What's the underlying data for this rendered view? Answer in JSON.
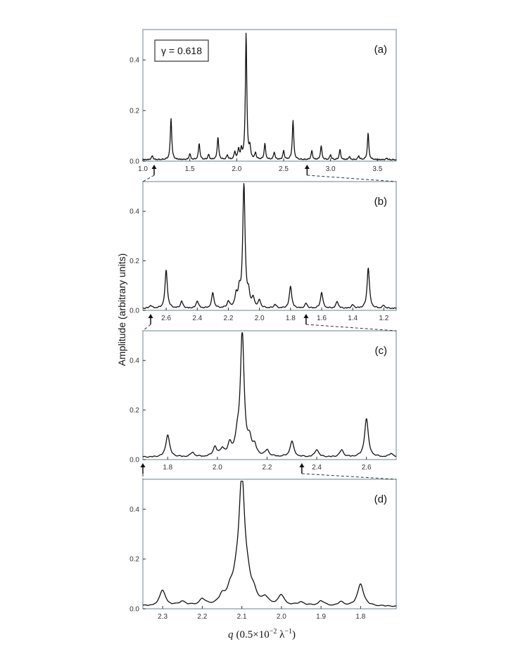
{
  "figure": {
    "y_axis_label": "Amplitude (arbitrary units)",
    "x_axis_label_var": "q",
    "x_axis_label_units": "(0.5×10",
    "x_axis_label_exp": "−2",
    "x_axis_label_tail": " λ",
    "x_axis_label_exp2": "−1",
    "x_axis_label_close": ")",
    "legend": "γ = 0.618"
  },
  "chart_data": [
    {
      "panel": "(a)",
      "type": "line",
      "x_range": [
        1.0,
        3.7
      ],
      "x_reversed": false,
      "ylim": [
        0,
        0.52
      ],
      "yticks": [
        0.0,
        0.2,
        0.4
      ],
      "xticks": [
        1.0,
        1.5,
        2.0,
        2.5,
        3.0,
        3.5
      ],
      "xtick_labels": [
        "1.0",
        "1.5",
        "2.0",
        "2.5",
        "3.0",
        "3.5"
      ],
      "baseline": 0.004,
      "peaks": [
        {
          "x": 1.1,
          "y": 0.016
        },
        {
          "x": 1.3,
          "y": 0.165
        },
        {
          "x": 1.5,
          "y": 0.024
        },
        {
          "x": 1.6,
          "y": 0.065
        },
        {
          "x": 1.7,
          "y": 0.02
        },
        {
          "x": 1.8,
          "y": 0.09
        },
        {
          "x": 1.9,
          "y": 0.018
        },
        {
          "x": 1.98,
          "y": 0.03
        },
        {
          "x": 2.02,
          "y": 0.04
        },
        {
          "x": 2.05,
          "y": 0.035
        },
        {
          "x": 2.1,
          "y": 0.5
        },
        {
          "x": 2.14,
          "y": 0.045
        },
        {
          "x": 2.2,
          "y": 0.025
        },
        {
          "x": 2.3,
          "y": 0.063
        },
        {
          "x": 2.4,
          "y": 0.03
        },
        {
          "x": 2.5,
          "y": 0.035
        },
        {
          "x": 2.6,
          "y": 0.155
        },
        {
          "x": 2.8,
          "y": 0.035
        },
        {
          "x": 2.9,
          "y": 0.055
        },
        {
          "x": 3.0,
          "y": 0.02
        },
        {
          "x": 3.1,
          "y": 0.04
        },
        {
          "x": 3.2,
          "y": 0.012
        },
        {
          "x": 3.3,
          "y": 0.015
        },
        {
          "x": 3.4,
          "y": 0.105
        },
        {
          "x": 3.6,
          "y": 0.006
        }
      ],
      "arrows_x": [
        1.12,
        2.75
      ]
    },
    {
      "panel": "(b)",
      "type": "line",
      "x_range": [
        2.75,
        1.12
      ],
      "x_reversed": true,
      "ylim": [
        0,
        0.52
      ],
      "yticks": [
        0.0,
        0.2,
        0.4
      ],
      "xticks": [
        2.6,
        2.4,
        2.2,
        2.0,
        1.8,
        1.6,
        1.4,
        1.2
      ],
      "xtick_labels": [
        "2.6",
        "2.4",
        "2.2",
        "2.0",
        "1.8",
        "1.6",
        "1.4",
        "1.2"
      ],
      "baseline": 0.006,
      "peaks": [
        {
          "x": 2.7,
          "y": 0.012
        },
        {
          "x": 2.6,
          "y": 0.155
        },
        {
          "x": 2.5,
          "y": 0.028
        },
        {
          "x": 2.4,
          "y": 0.03
        },
        {
          "x": 2.3,
          "y": 0.062
        },
        {
          "x": 2.2,
          "y": 0.025
        },
        {
          "x": 2.15,
          "y": 0.045
        },
        {
          "x": 2.13,
          "y": 0.06
        },
        {
          "x": 2.1,
          "y": 0.5
        },
        {
          "x": 2.07,
          "y": 0.05
        },
        {
          "x": 2.04,
          "y": 0.035
        },
        {
          "x": 2.0,
          "y": 0.03
        },
        {
          "x": 1.9,
          "y": 0.015
        },
        {
          "x": 1.8,
          "y": 0.09
        },
        {
          "x": 1.7,
          "y": 0.02
        },
        {
          "x": 1.6,
          "y": 0.065
        },
        {
          "x": 1.5,
          "y": 0.028
        },
        {
          "x": 1.4,
          "y": 0.014
        },
        {
          "x": 1.3,
          "y": 0.165
        },
        {
          "x": 1.2,
          "y": 0.012
        }
      ],
      "arrows_x": [
        2.7,
        1.7
      ]
    },
    {
      "panel": "(c)",
      "type": "line",
      "x_range": [
        1.7,
        2.72
      ],
      "x_reversed": false,
      "ylim": [
        0,
        0.52
      ],
      "yticks": [
        0.0,
        0.2,
        0.4
      ],
      "xticks": [
        1.8,
        2.0,
        2.2,
        2.4,
        2.6
      ],
      "xtick_labels": [
        "1.8",
        "2.0",
        "2.2",
        "2.4",
        "2.6"
      ],
      "baseline": 0.008,
      "peaks": [
        {
          "x": 1.8,
          "y": 0.09
        },
        {
          "x": 1.9,
          "y": 0.018
        },
        {
          "x": 1.99,
          "y": 0.038
        },
        {
          "x": 2.02,
          "y": 0.028
        },
        {
          "x": 2.05,
          "y": 0.045
        },
        {
          "x": 2.08,
          "y": 0.06
        },
        {
          "x": 2.1,
          "y": 0.5
        },
        {
          "x": 2.13,
          "y": 0.055
        },
        {
          "x": 2.15,
          "y": 0.035
        },
        {
          "x": 2.2,
          "y": 0.025
        },
        {
          "x": 2.3,
          "y": 0.063
        },
        {
          "x": 2.4,
          "y": 0.03
        },
        {
          "x": 2.5,
          "y": 0.028
        },
        {
          "x": 2.6,
          "y": 0.155
        },
        {
          "x": 2.7,
          "y": 0.015
        }
      ],
      "arrows_x": [
        1.7,
        2.34
      ]
    },
    {
      "panel": "(d)",
      "type": "line",
      "x_range": [
        2.35,
        1.71
      ],
      "x_reversed": true,
      "ylim": [
        0,
        0.52
      ],
      "yticks": [
        0.0,
        0.2,
        0.4
      ],
      "xticks": [
        2.3,
        2.2,
        2.1,
        2.0,
        1.9,
        1.8
      ],
      "xtick_labels": [
        "2.3",
        "2.2",
        "2.1",
        "2.0",
        "1.9",
        "1.8"
      ],
      "baseline": 0.008,
      "peaks": [
        {
          "x": 2.3,
          "y": 0.063
        },
        {
          "x": 2.25,
          "y": 0.018
        },
        {
          "x": 2.2,
          "y": 0.025
        },
        {
          "x": 2.15,
          "y": 0.03
        },
        {
          "x": 2.13,
          "y": 0.045
        },
        {
          "x": 2.115,
          "y": 0.06
        },
        {
          "x": 2.1,
          "y": 0.5
        },
        {
          "x": 2.085,
          "y": 0.055
        },
        {
          "x": 2.07,
          "y": 0.035
        },
        {
          "x": 2.04,
          "y": 0.025
        },
        {
          "x": 2.0,
          "y": 0.04
        },
        {
          "x": 1.95,
          "y": 0.015
        },
        {
          "x": 1.9,
          "y": 0.02
        },
        {
          "x": 1.85,
          "y": 0.014
        },
        {
          "x": 1.8,
          "y": 0.09
        }
      ],
      "arrows_x": []
    }
  ]
}
